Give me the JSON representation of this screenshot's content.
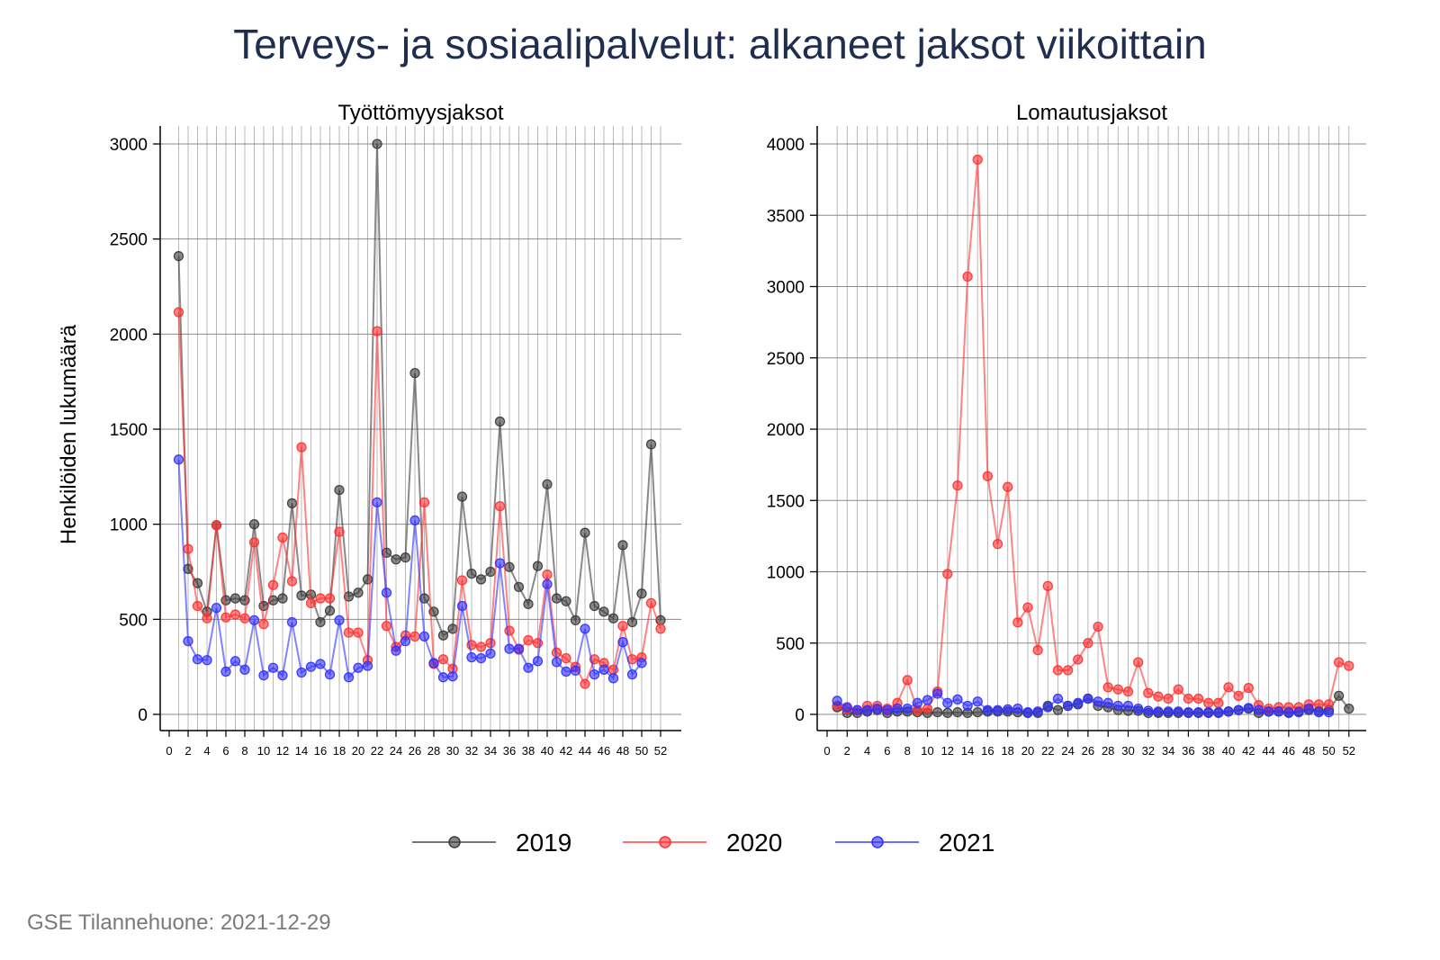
{
  "title": "Terveys- ja sosiaalipalvelut: alkaneet jaksot viikoittain",
  "footer": "GSE Tilannehuone: 2021-12-29",
  "ylabel": "Henkilöiden lukumäärä",
  "colors": {
    "2019": "#3a3a3a",
    "2020": "#ff3030",
    "2021": "#3030ff",
    "title": "#1f2d4f"
  },
  "legend": [
    {
      "name": "2019",
      "color": "#3a3a3a"
    },
    {
      "name": "2020",
      "color": "#ff3030"
    },
    {
      "name": "2021",
      "color": "#3030ff"
    }
  ],
  "chart_data": [
    {
      "type": "line",
      "title": "Työttömyysjaksot",
      "ylabel": "Henkilöiden lukumäärä",
      "xlim": [
        0,
        52
      ],
      "xticks": [
        0,
        2,
        4,
        6,
        8,
        10,
        12,
        14,
        16,
        18,
        20,
        22,
        24,
        26,
        28,
        30,
        32,
        34,
        36,
        38,
        40,
        42,
        44,
        46,
        48,
        50,
        52
      ],
      "ylim": [
        0,
        3000
      ],
      "yticks": [
        0,
        500,
        1000,
        1500,
        2000,
        2500,
        3000
      ],
      "grid": true,
      "series": [
        {
          "name": "2019",
          "x": [
            1,
            2,
            3,
            4,
            5,
            6,
            7,
            8,
            9,
            10,
            11,
            12,
            13,
            14,
            15,
            16,
            17,
            18,
            19,
            20,
            21,
            22,
            23,
            24,
            25,
            26,
            27,
            28,
            29,
            30,
            31,
            32,
            33,
            34,
            35,
            36,
            37,
            38,
            39,
            40,
            41,
            42,
            43,
            44,
            45,
            46,
            47,
            48,
            49,
            50,
            51,
            52
          ],
          "values": [
            2410,
            765,
            690,
            540,
            995,
            600,
            610,
            600,
            1000,
            570,
            600,
            610,
            1110,
            625,
            630,
            485,
            545,
            1180,
            620,
            640,
            710,
            3000,
            850,
            815,
            825,
            1795,
            610,
            540,
            415,
            450,
            1145,
            740,
            710,
            750,
            1540,
            775,
            670,
            580,
            780,
            1210,
            610,
            595,
            495,
            955,
            570,
            540,
            505,
            890,
            485,
            635,
            1420,
            495
          ]
        },
        {
          "name": "2020",
          "x": [
            1,
            2,
            3,
            4,
            5,
            6,
            7,
            8,
            9,
            10,
            11,
            12,
            13,
            14,
            15,
            16,
            17,
            18,
            19,
            20,
            21,
            22,
            23,
            24,
            25,
            26,
            27,
            28,
            29,
            30,
            31,
            32,
            33,
            34,
            35,
            36,
            37,
            38,
            39,
            40,
            41,
            42,
            43,
            44,
            45,
            46,
            47,
            48,
            49,
            50,
            51,
            52
          ],
          "values": [
            2115,
            870,
            570,
            505,
            995,
            510,
            525,
            505,
            905,
            475,
            680,
            930,
            700,
            1405,
            585,
            610,
            610,
            960,
            430,
            430,
            285,
            2015,
            465,
            355,
            415,
            410,
            1115,
            265,
            290,
            240,
            705,
            365,
            355,
            375,
            1095,
            440,
            340,
            390,
            375,
            735,
            325,
            295,
            250,
            160,
            290,
            270,
            235,
            465,
            290,
            300,
            585,
            450
          ]
        },
        {
          "name": "2021",
          "x": [
            1,
            2,
            3,
            4,
            5,
            6,
            7,
            8,
            9,
            10,
            11,
            12,
            13,
            14,
            15,
            16,
            17,
            18,
            19,
            20,
            21,
            22,
            23,
            24,
            25,
            26,
            27,
            28,
            29,
            30,
            31,
            32,
            33,
            34,
            35,
            36,
            37,
            38,
            39,
            40,
            41,
            42,
            43,
            44,
            45,
            46,
            47,
            48,
            49,
            50
          ],
          "values": [
            1340,
            385,
            290,
            285,
            560,
            225,
            280,
            235,
            495,
            205,
            245,
            205,
            485,
            220,
            250,
            265,
            210,
            495,
            195,
            245,
            255,
            1115,
            640,
            335,
            385,
            1020,
            410,
            270,
            195,
            200,
            570,
            300,
            295,
            320,
            795,
            345,
            345,
            245,
            280,
            685,
            275,
            225,
            230,
            450,
            210,
            235,
            190,
            380,
            210,
            270
          ]
        }
      ]
    },
    {
      "type": "line",
      "title": "Lomautusjaksot",
      "xlim": [
        0,
        52
      ],
      "xticks": [
        0,
        2,
        4,
        6,
        8,
        10,
        12,
        14,
        16,
        18,
        20,
        22,
        24,
        26,
        28,
        30,
        32,
        34,
        36,
        38,
        40,
        42,
        44,
        46,
        48,
        50,
        52
      ],
      "ylim": [
        0,
        4000
      ],
      "yticks": [
        0,
        500,
        1000,
        1500,
        2000,
        2500,
        3000,
        3500,
        4000
      ],
      "grid": true,
      "series": [
        {
          "name": "2019",
          "x": [
            1,
            2,
            3,
            4,
            5,
            6,
            7,
            8,
            9,
            10,
            11,
            12,
            13,
            14,
            15,
            16,
            17,
            18,
            19,
            20,
            21,
            22,
            23,
            24,
            25,
            26,
            27,
            28,
            29,
            30,
            31,
            32,
            33,
            34,
            35,
            36,
            37,
            38,
            39,
            40,
            41,
            42,
            43,
            44,
            45,
            46,
            47,
            48,
            49,
            50,
            51,
            52
          ],
          "values": [
            50,
            10,
            10,
            20,
            30,
            10,
            20,
            20,
            15,
            10,
            15,
            10,
            15,
            10,
            15,
            20,
            20,
            20,
            15,
            10,
            10,
            60,
            30,
            60,
            70,
            110,
            60,
            50,
            30,
            25,
            25,
            10,
            10,
            10,
            10,
            10,
            10,
            10,
            10,
            20,
            30,
            40,
            10,
            20,
            20,
            10,
            20,
            30,
            25,
            30,
            130,
            40
          ]
        },
        {
          "name": "2020",
          "x": [
            1,
            2,
            3,
            4,
            5,
            6,
            7,
            8,
            9,
            10,
            11,
            12,
            13,
            14,
            15,
            16,
            17,
            18,
            19,
            20,
            21,
            22,
            23,
            24,
            25,
            26,
            27,
            28,
            29,
            30,
            31,
            32,
            33,
            34,
            35,
            36,
            37,
            38,
            39,
            40,
            41,
            42,
            43,
            44,
            45,
            46,
            47,
            48,
            49,
            50,
            51,
            52
          ],
          "values": [
            60,
            40,
            30,
            60,
            60,
            40,
            80,
            240,
            30,
            40,
            160,
            985,
            1605,
            3070,
            3890,
            1670,
            1195,
            1595,
            645,
            750,
            450,
            900,
            310,
            310,
            385,
            500,
            615,
            190,
            175,
            160,
            365,
            150,
            125,
            110,
            175,
            110,
            110,
            80,
            80,
            190,
            130,
            185,
            65,
            40,
            50,
            50,
            50,
            70,
            70,
            70,
            365,
            340
          ]
        },
        {
          "name": "2021",
          "x": [
            1,
            2,
            3,
            4,
            5,
            6,
            7,
            8,
            9,
            10,
            11,
            12,
            13,
            14,
            15,
            16,
            17,
            18,
            19,
            20,
            21,
            22,
            23,
            24,
            25,
            26,
            27,
            28,
            29,
            30,
            31,
            32,
            33,
            34,
            35,
            36,
            37,
            38,
            39,
            40,
            41,
            42,
            43,
            44,
            45,
            46,
            47,
            48,
            49,
            50
          ],
          "values": [
            95,
            50,
            30,
            30,
            40,
            30,
            40,
            40,
            80,
            100,
            145,
            80,
            105,
            60,
            90,
            30,
            30,
            35,
            40,
            15,
            20,
            50,
            110,
            60,
            80,
            110,
            90,
            80,
            60,
            60,
            40,
            25,
            20,
            20,
            20,
            15,
            15,
            15,
            15,
            20,
            30,
            45,
            30,
            20,
            20,
            15,
            15,
            40,
            15,
            15
          ]
        }
      ]
    }
  ]
}
